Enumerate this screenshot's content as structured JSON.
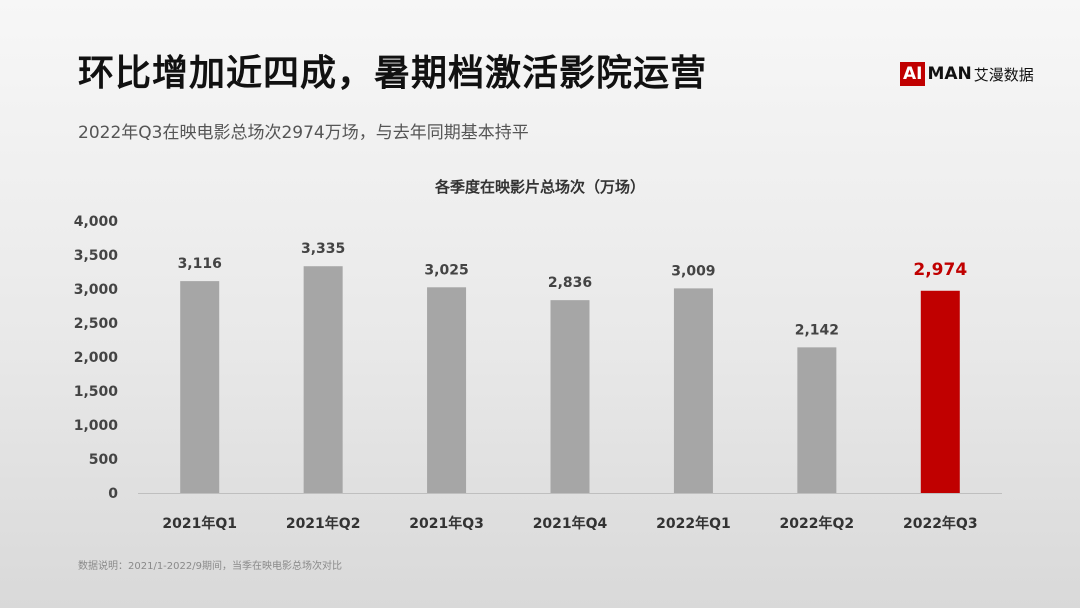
{
  "header": {
    "title": "环比增加近四成，暑期档激活影院运营",
    "subtitle": "2022年Q3在映电影总场次2974万场，与去年同期基本持平"
  },
  "logo": {
    "ai": "AI",
    "man": "MAN",
    "name": "艾漫数据"
  },
  "footnote": "数据说明：2021/1-2022/9期间，当季在映电影总场次对比",
  "colors": {
    "bar": "#a6a6a6",
    "highlight": "#c00000",
    "axis": "#bfbfbf"
  },
  "chart_data": {
    "type": "bar",
    "title": "各季度在映影片总场次（万场）",
    "categories": [
      "2021年Q1",
      "2021年Q2",
      "2021年Q3",
      "2021年Q4",
      "2022年Q1",
      "2022年Q2",
      "2022年Q3"
    ],
    "values": [
      3116,
      3335,
      3025,
      2836,
      3009,
      2142,
      2974
    ],
    "value_labels": [
      "3,116",
      "3,335",
      "3,025",
      "2,836",
      "3,009",
      "2,142",
      "2,974"
    ],
    "highlight_index": 6,
    "ylim": [
      0,
      4000
    ],
    "yticks": [
      0,
      500,
      1000,
      1500,
      2000,
      2500,
      3000,
      3500,
      4000
    ],
    "ytick_labels": [
      "0",
      "500",
      "1,000",
      "1,500",
      "2,000",
      "2,500",
      "3,000",
      "3,500",
      "4,000"
    ],
    "grid": false,
    "legend": "none"
  }
}
